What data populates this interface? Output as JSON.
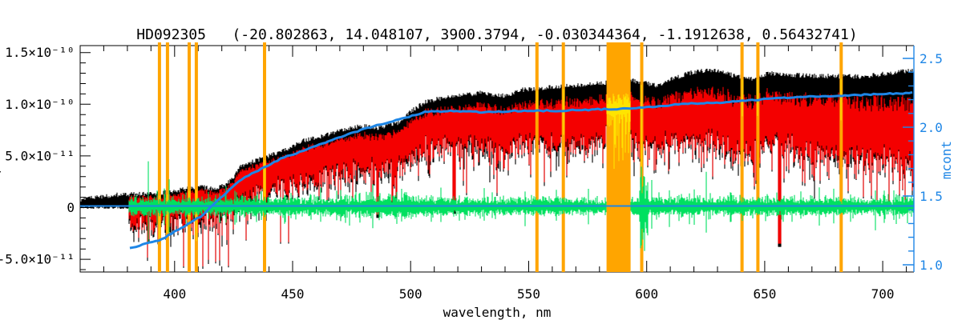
{
  "colors": {
    "observed": "#000000",
    "fit": "#f40000",
    "masked_fit": "#ffe400",
    "residuals": "#00e060",
    "continuum": "#1e86e6",
    "mask": "#ffa500",
    "axis": "#000000",
    "right_axis": "#1e86e6",
    "background": "#ffffff"
  },
  "chart_data": {
    "type": "line",
    "title": "HD092305   (-20.802863, 14.048107, 3900.3794, -0.030344364, -1.1912638, 0.56432741)",
    "xlabel": "wavelength, nm",
    "ylabel_left_clipped": "flam, units",
    "ylabel_right": "mcont",
    "grid": false,
    "xlim_nm": [
      360,
      713.2
    ],
    "x_major_ticks_nm": [
      400,
      450,
      500,
      550,
      600,
      650,
      700
    ],
    "x_minor_step_nm": 10,
    "ylim_left_flux": [
      -6.4e-11,
      1.57e-10
    ],
    "y_left_tick_labels": [
      "1.5×10⁻¹⁰",
      "1.0×10⁻¹⁰",
      "5.0×10⁻¹¹",
      "0",
      "-5.0×10⁻¹¹"
    ],
    "y_left_tick_values_e11": [
      15,
      10,
      5,
      0,
      -5
    ],
    "y_left_minor_step_e11": 1,
    "ylim_right_mcont": [
      0.85,
      2.63
    ],
    "y_right_major_ticks": [
      1.0,
      1.5,
      2.0,
      2.5
    ],
    "y_right_minor_step": 0.1,
    "series": [
      {
        "name": "observed_spectrum",
        "color": "black",
        "style": "dense_vertical_strokes",
        "start_nm": 360,
        "top_envelope_nm": [
          360,
          374,
          381,
          394,
          404,
          411,
          418,
          424,
          428,
          435,
          445,
          455,
          462,
          472,
          479,
          486,
          496,
          500,
          506,
          513,
          520,
          530,
          540,
          547,
          557,
          564,
          577,
          588,
          594,
          604,
          611,
          618,
          625,
          632,
          638,
          645,
          652,
          665,
          679,
          693,
          706,
          713
        ],
        "top_envelope_e11": [
          0.8,
          1.2,
          1.3,
          1.4,
          1.8,
          2.0,
          1.8,
          2.6,
          4.0,
          4.6,
          5.4,
          6.5,
          6.9,
          7.5,
          7.9,
          7.7,
          8.3,
          9.3,
          10.2,
          10.6,
          10.8,
          11.1,
          10.8,
          11.4,
          11.6,
          11.7,
          12.0,
          12.2,
          12.3,
          11.8,
          12.5,
          13.0,
          13.3,
          13.1,
          12.7,
          12.5,
          13.0,
          12.8,
          12.7,
          12.7,
          13.1,
          13.3
        ]
      },
      {
        "name": "fitted_spectrum",
        "color": "red",
        "style": "dense_vertical_strokes",
        "start_nm": 380.5,
        "offset_below_observed_nm": [
          380,
          400,
          420,
          440,
          460,
          480,
          500,
          510,
          530,
          550,
          570,
          590,
          600,
          620,
          640,
          650,
          660,
          680,
          700,
          713
        ],
        "offset_below_observed_e11": [
          0.15,
          0.23,
          0.23,
          0.46,
          0.7,
          0.77,
          0.85,
          1.0,
          1.16,
          1.32,
          1.47,
          1.39,
          1.55,
          1.86,
          2.17,
          1.94,
          2.09,
          2.32,
          2.63,
          3.1
        ]
      },
      {
        "name": "masked_spectrum",
        "color": "yellow",
        "style": "dense_vertical_strokes",
        "note": "spectrum drawn in yellow inside the orange masked regions"
      },
      {
        "name": "residuals",
        "color": "green",
        "style": "noise_band_x_symbols",
        "start_nm": 380.5,
        "center_flux_e11": 0.15,
        "dense_amplitude_e11": [
          0.4,
          1.0
        ],
        "spike_amplitude_e11": 3.2
      },
      {
        "name": "mcont_continuum",
        "color": "blue",
        "axis": "right",
        "x_nm": [
          381,
          394,
          411,
          428,
          445,
          462,
          479,
          496,
          506,
          519,
          530,
          547,
          564,
          581,
          598,
          615,
          632,
          648,
          665,
          682,
          699,
          713
        ],
        "mcont": [
          1.12,
          1.18,
          1.35,
          1.62,
          1.77,
          1.88,
          1.98,
          2.06,
          2.11,
          2.12,
          2.11,
          2.12,
          2.12,
          2.13,
          2.14,
          2.17,
          2.18,
          2.2,
          2.22,
          2.23,
          2.24,
          2.25
        ]
      },
      {
        "name": "zero_line",
        "color": "blue",
        "flux_e11": 0.15
      }
    ],
    "masks": {
      "color": "orange",
      "lines_nm": [
        393.6,
        397.0,
        406.2,
        409.2,
        438.1,
        553.5,
        564.7,
        597.9,
        640.4,
        647.1,
        682.4
      ],
      "line_width_nm": 1.4,
      "band_nm": [
        583.0,
        593.2
      ]
    },
    "absorption_lines": {
      "nm": [
        410.2,
        434.0,
        486.1,
        518.4,
        597.9,
        656.3
      ],
      "min_flux_e11": [
        -0.4,
        -0.3,
        -1.0,
        -0.6,
        2.0,
        -3.8
      ]
    }
  }
}
